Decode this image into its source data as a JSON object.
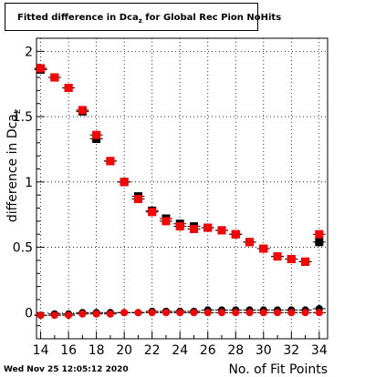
{
  "chart_data": {
    "type": "scatter",
    "title_main": "Fitted difference in Dca",
    "title_sub": "z",
    "title_rest": " for Global Rec Pion NoHits",
    "xlabel": "No. of Fit Points",
    "ylabel": "difference in Dca",
    "ylabel_sub": "z",
    "xlim": [
      13.7,
      34.6
    ],
    "ylim": [
      -0.2,
      2.1
    ],
    "x_ticks": [
      14,
      16,
      18,
      20,
      22,
      24,
      26,
      28,
      30,
      32,
      34
    ],
    "y_ticks": [
      0,
      0.5,
      1,
      1.5,
      2
    ],
    "y_tick_labels": [
      "0",
      "0.5",
      "1",
      "1.5",
      "2"
    ],
    "grid": true,
    "series": [
      {
        "color": "#000000",
        "marker": "square",
        "x": [
          14,
          15,
          16,
          17,
          18,
          19,
          20,
          21,
          22,
          23,
          24,
          25,
          26,
          27,
          28,
          29,
          30,
          31,
          32,
          33,
          34
        ],
        "y": [
          1.86,
          1.8,
          1.72,
          1.54,
          1.33,
          1.16,
          1.0,
          0.89,
          0.78,
          0.72,
          0.68,
          0.66,
          0.65,
          0.63,
          0.6,
          0.54,
          0.49,
          0.43,
          0.41,
          0.39,
          0.54
        ]
      },
      {
        "color": "#ff0000",
        "marker": "square",
        "x": [
          14,
          15,
          16,
          17,
          18,
          19,
          20,
          21,
          22,
          23,
          24,
          25,
          26,
          27,
          28,
          29,
          30,
          31,
          32,
          33,
          34
        ],
        "y": [
          1.87,
          1.8,
          1.72,
          1.55,
          1.36,
          1.16,
          1.0,
          0.87,
          0.77,
          0.7,
          0.66,
          0.64,
          0.65,
          0.63,
          0.6,
          0.54,
          0.49,
          0.43,
          0.41,
          0.39,
          0.6
        ]
      },
      {
        "color": "#000000",
        "marker": "circle",
        "x": [
          14,
          15,
          16,
          17,
          18,
          19,
          20,
          21,
          22,
          23,
          24,
          25,
          26,
          27,
          28,
          29,
          30,
          31,
          32,
          33,
          34
        ],
        "y": [
          -0.02,
          -0.01,
          -0.01,
          0.0,
          0.0,
          0.0,
          0.0,
          0.0,
          0.01,
          0.01,
          0.01,
          0.01,
          0.02,
          0.02,
          0.02,
          0.02,
          0.02,
          0.02,
          0.02,
          0.02,
          0.03
        ]
      },
      {
        "color": "#ff0000",
        "marker": "circle",
        "x": [
          14,
          15,
          16,
          17,
          18,
          19,
          20,
          21,
          22,
          23,
          24,
          25,
          26,
          27,
          28,
          29,
          30,
          31,
          32,
          33,
          34
        ],
        "y": [
          -0.02,
          -0.02,
          -0.02,
          -0.01,
          -0.01,
          -0.01,
          0.0,
          0.0,
          0.0,
          0.0,
          0.0,
          0.0,
          0.0,
          0.0,
          0.0,
          0.0,
          0.0,
          0.0,
          0.0,
          0.0,
          0.0
        ]
      }
    ]
  },
  "footer": {
    "timestamp": "Wed Nov 25 12:05:12 2020"
  }
}
